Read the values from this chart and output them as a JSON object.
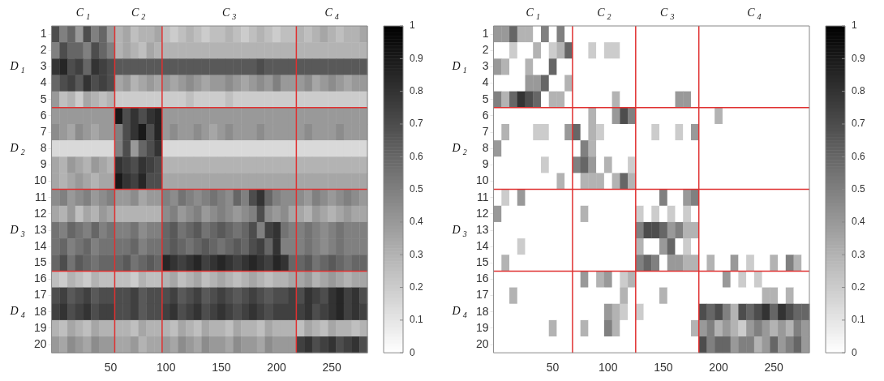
{
  "chart_data": [
    {
      "type": "heatmap",
      "categories": [
        null,
        null,
        null,
        null,
        null,
        null,
        null,
        "50",
        null,
        null,
        null,
        null,
        null,
        null,
        "100",
        null,
        null,
        null,
        null,
        null,
        null,
        "150",
        null,
        null,
        null,
        null,
        null,
        null,
        "200",
        null,
        null,
        null,
        null,
        null,
        null,
        "250",
        null,
        null,
        null,
        null
      ],
      "ylim": [
        20.5,
        0.5
      ],
      "yticks": [
        1,
        2,
        3,
        4,
        5,
        6,
        7,
        8,
        9,
        10,
        11,
        12,
        13,
        14,
        15,
        16,
        17,
        18,
        19,
        20
      ],
      "clim": [
        0,
        1
      ],
      "cticks": [
        0,
        0.1,
        0.2,
        0.3,
        0.4,
        0.5,
        0.6,
        0.7,
        0.8,
        0.9,
        1
      ],
      "cells": [
        [
          0.7,
          0.5,
          0.6,
          0.4,
          0.7,
          0.5,
          0.6,
          0.4,
          0.3,
          0.35,
          0.25,
          0.3,
          0.3,
          0.35,
          0.25,
          0.2,
          0.25,
          0.3,
          0.25,
          0.2,
          0.25,
          0.25,
          0.3,
          0.25,
          0.2,
          0.25,
          0.3,
          0.25,
          0.2,
          0.25,
          0.25,
          0.3,
          0.25,
          0.3,
          0.35,
          0.3,
          0.25,
          0.3,
          0.3,
          0.35
        ],
        [
          0.5,
          0.7,
          0.6,
          0.6,
          0.5,
          0.7,
          0.6,
          0.5,
          0.3,
          0.35,
          0.3,
          0.25,
          0.35,
          0.3,
          0.3,
          0.3,
          0.3,
          0.3,
          0.3,
          0.3,
          0.3,
          0.3,
          0.3,
          0.3,
          0.3,
          0.3,
          0.3,
          0.3,
          0.3,
          0.3,
          0.3,
          0.3,
          0.3,
          0.3,
          0.3,
          0.3,
          0.3,
          0.3,
          0.3,
          0.3
        ],
        [
          0.8,
          0.85,
          0.7,
          0.75,
          0.6,
          0.8,
          0.75,
          0.7,
          0.65,
          0.65,
          0.65,
          0.65,
          0.65,
          0.65,
          0.65,
          0.65,
          0.65,
          0.65,
          0.65,
          0.65,
          0.65,
          0.65,
          0.65,
          0.65,
          0.65,
          0.65,
          0.7,
          0.65,
          0.65,
          0.65,
          0.65,
          0.65,
          0.65,
          0.65,
          0.65,
          0.65,
          0.65,
          0.65,
          0.65,
          0.65
        ],
        [
          0.6,
          0.7,
          0.75,
          0.65,
          0.8,
          0.7,
          0.75,
          0.7,
          0.35,
          0.4,
          0.3,
          0.35,
          0.4,
          0.35,
          0.4,
          0.35,
          0.4,
          0.45,
          0.4,
          0.35,
          0.4,
          0.4,
          0.45,
          0.4,
          0.35,
          0.4,
          0.45,
          0.4,
          0.5,
          0.4,
          0.4,
          0.4,
          0.45,
          0.35,
          0.4,
          0.45,
          0.4,
          0.35,
          0.4,
          0.4
        ],
        [
          0.4,
          0.25,
          0.3,
          0.2,
          0.35,
          0.3,
          0.25,
          0.3,
          0.2,
          0.2,
          0.2,
          0.2,
          0.2,
          0.2,
          0.2,
          0.2,
          0.2,
          0.25,
          0.2,
          0.2,
          0.2,
          0.2,
          0.25,
          0.2,
          0.2,
          0.2,
          0.2,
          0.2,
          0.2,
          0.2,
          0.2,
          0.2,
          0.2,
          0.2,
          0.2,
          0.2,
          0.2,
          0.2,
          0.2,
          0.2
        ],
        [
          0.4,
          0.4,
          0.4,
          0.4,
          0.4,
          0.4,
          0.4,
          0.4,
          0.9,
          0.7,
          0.8,
          0.7,
          0.8,
          0.85,
          0.4,
          0.4,
          0.4,
          0.4,
          0.4,
          0.4,
          0.4,
          0.4,
          0.4,
          0.4,
          0.4,
          0.4,
          0.4,
          0.4,
          0.4,
          0.4,
          0.4,
          0.4,
          0.4,
          0.4,
          0.4,
          0.4,
          0.4,
          0.4,
          0.4,
          0.4
        ],
        [
          0.45,
          0.4,
          0.35,
          0.45,
          0.4,
          0.35,
          0.4,
          0.4,
          0.5,
          0.7,
          0.8,
          0.9,
          0.7,
          0.85,
          0.4,
          0.45,
          0.4,
          0.4,
          0.45,
          0.4,
          0.35,
          0.4,
          0.45,
          0.4,
          0.4,
          0.4,
          0.45,
          0.4,
          0.4,
          0.4,
          0.4,
          0.4,
          0.45,
          0.4,
          0.4,
          0.4,
          0.45,
          0.4,
          0.4,
          0.4
        ],
        [
          0.15,
          0.15,
          0.15,
          0.15,
          0.15,
          0.15,
          0.15,
          0.15,
          0.5,
          0.7,
          0.4,
          0.6,
          0.7,
          0.8,
          0.15,
          0.15,
          0.15,
          0.15,
          0.15,
          0.15,
          0.15,
          0.15,
          0.15,
          0.15,
          0.15,
          0.15,
          0.15,
          0.15,
          0.15,
          0.15,
          0.15,
          0.15,
          0.15,
          0.15,
          0.15,
          0.15,
          0.15,
          0.15,
          0.15,
          0.15
        ],
        [
          0.35,
          0.3,
          0.4,
          0.35,
          0.3,
          0.4,
          0.35,
          0.3,
          0.8,
          0.75,
          0.7,
          0.8,
          0.75,
          0.7,
          0.3,
          0.3,
          0.3,
          0.3,
          0.3,
          0.3,
          0.3,
          0.3,
          0.3,
          0.3,
          0.3,
          0.3,
          0.3,
          0.3,
          0.3,
          0.3,
          0.3,
          0.3,
          0.3,
          0.3,
          0.3,
          0.3,
          0.3,
          0.3,
          0.3,
          0.3
        ],
        [
          0.35,
          0.3,
          0.35,
          0.4,
          0.35,
          0.3,
          0.35,
          0.35,
          0.9,
          0.8,
          0.75,
          0.85,
          0.7,
          0.7,
          0.35,
          0.35,
          0.35,
          0.35,
          0.35,
          0.35,
          0.35,
          0.35,
          0.35,
          0.35,
          0.35,
          0.35,
          0.35,
          0.35,
          0.35,
          0.35,
          0.35,
          0.35,
          0.35,
          0.35,
          0.35,
          0.35,
          0.35,
          0.35,
          0.35,
          0.35
        ],
        [
          0.45,
          0.5,
          0.4,
          0.45,
          0.5,
          0.4,
          0.45,
          0.5,
          0.4,
          0.4,
          0.45,
          0.35,
          0.4,
          0.4,
          0.5,
          0.45,
          0.55,
          0.5,
          0.45,
          0.5,
          0.55,
          0.5,
          0.45,
          0.6,
          0.5,
          0.7,
          0.8,
          0.6,
          0.5,
          0.45,
          0.45,
          0.45,
          0.4,
          0.5,
          0.45,
          0.4,
          0.45,
          0.5,
          0.45,
          0.4
        ],
        [
          0.35,
          0.3,
          0.4,
          0.25,
          0.35,
          0.3,
          0.4,
          0.35,
          0.3,
          0.3,
          0.3,
          0.3,
          0.3,
          0.3,
          0.45,
          0.5,
          0.4,
          0.45,
          0.5,
          0.4,
          0.45,
          0.5,
          0.45,
          0.4,
          0.45,
          0.5,
          0.7,
          0.45,
          0.4,
          0.45,
          0.35,
          0.35,
          0.3,
          0.4,
          0.35,
          0.3,
          0.35,
          0.4,
          0.35,
          0.35
        ],
        [
          0.55,
          0.5,
          0.6,
          0.55,
          0.5,
          0.6,
          0.5,
          0.55,
          0.5,
          0.5,
          0.55,
          0.45,
          0.5,
          0.5,
          0.6,
          0.65,
          0.55,
          0.6,
          0.65,
          0.55,
          0.6,
          0.65,
          0.6,
          0.55,
          0.6,
          0.7,
          0.5,
          0.75,
          0.8,
          0.55,
          0.5,
          0.5,
          0.55,
          0.5,
          0.45,
          0.5,
          0.55,
          0.5,
          0.5,
          0.5
        ],
        [
          0.55,
          0.6,
          0.5,
          0.55,
          0.6,
          0.5,
          0.55,
          0.55,
          0.55,
          0.55,
          0.6,
          0.5,
          0.55,
          0.55,
          0.6,
          0.65,
          0.6,
          0.55,
          0.6,
          0.65,
          0.6,
          0.55,
          0.6,
          0.65,
          0.6,
          0.7,
          0.75,
          0.6,
          0.8,
          0.5,
          0.5,
          0.5,
          0.55,
          0.5,
          0.45,
          0.5,
          0.55,
          0.5,
          0.5,
          0.5
        ],
        [
          0.6,
          0.7,
          0.55,
          0.65,
          0.6,
          0.55,
          0.6,
          0.6,
          0.6,
          0.65,
          0.55,
          0.6,
          0.65,
          0.6,
          0.85,
          0.8,
          0.75,
          0.8,
          0.85,
          0.75,
          0.8,
          0.85,
          0.8,
          0.75,
          0.8,
          0.85,
          0.8,
          0.75,
          0.85,
          0.8,
          0.6,
          0.6,
          0.65,
          0.55,
          0.6,
          0.65,
          0.6,
          0.55,
          0.6,
          0.6
        ],
        [
          0.25,
          0.2,
          0.3,
          0.25,
          0.2,
          0.3,
          0.25,
          0.25,
          0.25,
          0.25,
          0.2,
          0.3,
          0.25,
          0.25,
          0.3,
          0.35,
          0.25,
          0.3,
          0.35,
          0.25,
          0.3,
          0.35,
          0.3,
          0.25,
          0.3,
          0.35,
          0.3,
          0.25,
          0.3,
          0.3,
          0.35,
          0.35,
          0.4,
          0.3,
          0.35,
          0.4,
          0.35,
          0.3,
          0.35,
          0.35
        ],
        [
          0.7,
          0.75,
          0.65,
          0.7,
          0.75,
          0.65,
          0.7,
          0.7,
          0.7,
          0.7,
          0.75,
          0.65,
          0.7,
          0.7,
          0.7,
          0.75,
          0.65,
          0.7,
          0.75,
          0.65,
          0.7,
          0.75,
          0.7,
          0.65,
          0.7,
          0.75,
          0.7,
          0.65,
          0.7,
          0.7,
          0.75,
          0.7,
          0.8,
          0.75,
          0.7,
          0.8,
          0.85,
          0.75,
          0.8,
          0.7
        ],
        [
          0.75,
          0.8,
          0.7,
          0.75,
          0.8,
          0.7,
          0.75,
          0.75,
          0.7,
          0.7,
          0.75,
          0.65,
          0.7,
          0.7,
          0.75,
          0.8,
          0.7,
          0.75,
          0.8,
          0.7,
          0.75,
          0.8,
          0.75,
          0.7,
          0.75,
          0.8,
          0.75,
          0.7,
          0.75,
          0.75,
          0.75,
          0.75,
          0.8,
          0.7,
          0.75,
          0.8,
          0.85,
          0.75,
          0.8,
          0.75
        ],
        [
          0.3,
          0.25,
          0.35,
          0.3,
          0.25,
          0.35,
          0.3,
          0.3,
          0.3,
          0.3,
          0.25,
          0.35,
          0.3,
          0.3,
          0.3,
          0.25,
          0.35,
          0.3,
          0.25,
          0.35,
          0.3,
          0.3,
          0.25,
          0.35,
          0.3,
          0.3,
          0.25,
          0.35,
          0.3,
          0.3,
          0.3,
          0.25,
          0.35,
          0.3,
          0.25,
          0.35,
          0.3,
          0.3,
          0.25,
          0.3
        ],
        [
          0.4,
          0.35,
          0.45,
          0.4,
          0.35,
          0.45,
          0.4,
          0.4,
          0.35,
          0.35,
          0.4,
          0.3,
          0.35,
          0.35,
          0.4,
          0.35,
          0.45,
          0.4,
          0.35,
          0.45,
          0.4,
          0.4,
          0.35,
          0.45,
          0.4,
          0.4,
          0.35,
          0.45,
          0.4,
          0.4,
          0.4,
          0.75,
          0.8,
          0.7,
          0.75,
          0.8,
          0.7,
          0.75,
          0.8,
          0.7
        ]
      ],
      "ref_lines": [
        {
          "axis": "y",
          "value": 5.5,
          "color": "#e03030"
        },
        {
          "axis": "y",
          "value": 10.5,
          "color": "#e03030"
        },
        {
          "axis": "y",
          "value": 15.5,
          "color": "#e03030"
        }
      ],
      "annotations": [
        "C$_{1}$",
        "C$_{2}$",
        "C$_{3}$",
        "C$_{4}$",
        "D$_{1}$",
        "D$_{2}$",
        "D$_{3}$",
        "D$_{4}$"
      ]
    },
    {
      "type": "heatmap",
      "categories": [
        null,
        null,
        null,
        null,
        null,
        null,
        null,
        "50",
        null,
        null,
        null,
        null,
        null,
        null,
        "100",
        null,
        null,
        null,
        null,
        null,
        null,
        "150",
        null,
        null,
        null,
        null,
        null,
        null,
        "200",
        null,
        null,
        null,
        null,
        null,
        null,
        "250",
        null,
        null,
        null,
        null
      ],
      "ylim": [
        20.5,
        0.5
      ],
      "yticks": [
        1,
        2,
        3,
        4,
        5,
        6,
        7,
        8,
        9,
        10,
        11,
        12,
        13,
        14,
        15,
        16,
        17,
        18,
        19,
        20
      ],
      "clim": [
        0,
        1
      ],
      "cticks": [
        0,
        0.1,
        0.2,
        0.3,
        0.4,
        0.5,
        0.6,
        0.7,
        0.8,
        0.9,
        1
      ],
      "cells": [
        [
          0.4,
          0.4,
          0.6,
          0.3,
          0.3,
          0,
          0.5,
          0,
          0.5,
          0,
          0,
          0,
          0,
          0,
          0,
          0,
          0,
          0,
          0,
          0,
          0,
          0,
          0,
          0,
          0,
          0,
          0,
          0,
          0,
          0,
          0,
          0,
          0,
          0,
          0,
          0,
          0,
          0,
          0,
          0
        ],
        [
          0,
          0,
          0.2,
          0,
          0,
          0.3,
          0,
          0.2,
          0.3,
          0.6,
          0,
          0,
          0.2,
          0,
          0.2,
          0.2,
          0,
          0,
          0,
          0,
          0,
          0,
          0,
          0,
          0,
          0,
          0,
          0,
          0,
          0,
          0,
          0,
          0,
          0,
          0,
          0,
          0,
          0,
          0,
          0
        ],
        [
          0.4,
          0.3,
          0,
          0,
          0.3,
          0,
          0,
          0.6,
          0,
          0,
          0,
          0,
          0,
          0,
          0,
          0,
          0,
          0,
          0,
          0,
          0,
          0,
          0,
          0,
          0,
          0,
          0,
          0,
          0,
          0,
          0,
          0,
          0,
          0,
          0,
          0,
          0,
          0,
          0,
          0
        ],
        [
          0,
          0,
          0,
          0,
          0.4,
          0.4,
          0.6,
          0,
          0,
          0.3,
          0,
          0,
          0,
          0,
          0,
          0,
          0,
          0,
          0,
          0,
          0,
          0,
          0,
          0,
          0,
          0,
          0,
          0,
          0,
          0,
          0,
          0,
          0,
          0,
          0,
          0,
          0,
          0,
          0,
          0
        ],
        [
          0.5,
          0.3,
          0.6,
          0.8,
          0.7,
          0.6,
          0,
          0.3,
          0.3,
          0,
          0,
          0,
          0,
          0,
          0,
          0.3,
          0,
          0,
          0,
          0,
          0,
          0,
          0,
          0.4,
          0.4,
          0,
          0,
          0,
          0,
          0,
          0,
          0,
          0,
          0,
          0,
          0,
          0,
          0,
          0,
          0
        ],
        [
          0,
          0,
          0,
          0,
          0,
          0,
          0,
          0,
          0,
          0,
          0,
          0,
          0.3,
          0,
          0,
          0.4,
          0.7,
          0.5,
          0,
          0,
          0,
          0,
          0,
          0,
          0,
          0,
          0,
          0,
          0.3,
          0,
          0,
          0,
          0,
          0,
          0,
          0,
          0,
          0,
          0,
          0
        ],
        [
          0,
          0.3,
          0,
          0,
          0,
          0.2,
          0.2,
          0,
          0,
          0.4,
          0.6,
          0,
          0.3,
          0.2,
          0,
          0,
          0,
          0,
          0,
          0,
          0.2,
          0,
          0,
          0.2,
          0,
          0.4,
          0,
          0,
          0,
          0,
          0,
          0,
          0,
          0,
          0,
          0,
          0,
          0,
          0,
          0
        ],
        [
          0.4,
          0,
          0,
          0,
          0,
          0,
          0,
          0,
          0,
          0,
          0,
          0.5,
          0.3,
          0,
          0,
          0,
          0,
          0,
          0,
          0,
          0,
          0,
          0,
          0,
          0,
          0,
          0,
          0,
          0,
          0,
          0,
          0,
          0,
          0,
          0,
          0,
          0,
          0,
          0,
          0
        ],
        [
          0,
          0,
          0,
          0,
          0,
          0,
          0.2,
          0,
          0,
          0,
          0.5,
          0.6,
          0.4,
          0,
          0.3,
          0,
          0,
          0.2,
          0,
          0,
          0,
          0,
          0,
          0,
          0,
          0,
          0,
          0,
          0,
          0,
          0,
          0,
          0,
          0,
          0,
          0,
          0,
          0,
          0,
          0
        ],
        [
          0,
          0,
          0,
          0,
          0,
          0,
          0,
          0,
          0.3,
          0,
          0,
          0.3,
          0.3,
          0.3,
          0,
          0.3,
          0.6,
          0.3,
          0,
          0,
          0,
          0,
          0,
          0,
          0,
          0,
          0,
          0,
          0,
          0,
          0,
          0,
          0,
          0,
          0,
          0,
          0,
          0,
          0,
          0
        ],
        [
          0,
          0.2,
          0,
          0.4,
          0,
          0,
          0,
          0,
          0,
          0,
          0,
          0,
          0,
          0,
          0,
          0,
          0,
          0,
          0,
          0,
          0,
          0.5,
          0,
          0,
          0.4,
          0.5,
          0,
          0,
          0,
          0,
          0,
          0,
          0,
          0,
          0,
          0,
          0,
          0,
          0,
          0
        ],
        [
          0.4,
          0,
          0,
          0,
          0,
          0,
          0,
          0,
          0,
          0,
          0,
          0.3,
          0,
          0,
          0,
          0,
          0,
          0,
          0.2,
          0,
          0.2,
          0,
          0.2,
          0,
          0.2,
          0,
          0,
          0,
          0,
          0,
          0,
          0,
          0,
          0,
          0,
          0,
          0,
          0,
          0,
          0
        ],
        [
          0,
          0,
          0,
          0,
          0,
          0,
          0,
          0,
          0,
          0,
          0,
          0,
          0,
          0,
          0,
          0,
          0,
          0,
          0.5,
          0.7,
          0.7,
          0.6,
          0.4,
          0.5,
          0.3,
          0.3,
          0,
          0,
          0,
          0,
          0,
          0,
          0,
          0,
          0,
          0,
          0,
          0,
          0,
          0
        ],
        [
          0,
          0,
          0,
          0.2,
          0,
          0,
          0,
          0,
          0,
          0,
          0,
          0,
          0,
          0,
          0,
          0,
          0,
          0,
          0.3,
          0,
          0,
          0.4,
          0.6,
          0,
          0.2,
          0,
          0,
          0,
          0,
          0,
          0,
          0,
          0,
          0,
          0,
          0,
          0,
          0,
          0,
          0
        ],
        [
          0,
          0.3,
          0,
          0,
          0,
          0,
          0,
          0,
          0,
          0,
          0,
          0,
          0,
          0,
          0,
          0,
          0,
          0,
          0.5,
          0.6,
          0.5,
          0,
          0.4,
          0.4,
          0.3,
          0.3,
          0,
          0.3,
          0,
          0,
          0.4,
          0,
          0.2,
          0,
          0,
          0.3,
          0,
          0.5,
          0.3,
          0
        ],
        [
          0,
          0,
          0,
          0,
          0,
          0,
          0,
          0,
          0,
          0,
          0,
          0.4,
          0,
          0.3,
          0.4,
          0,
          0.2,
          0.3,
          0,
          0,
          0,
          0,
          0,
          0,
          0,
          0,
          0,
          0,
          0,
          0.4,
          0,
          0.2,
          0,
          0.2,
          0,
          0,
          0,
          0,
          0,
          0
        ],
        [
          0,
          0,
          0.3,
          0,
          0,
          0,
          0,
          0,
          0,
          0,
          0,
          0,
          0,
          0,
          0,
          0,
          0.3,
          0,
          0,
          0,
          0,
          0.3,
          0,
          0,
          0,
          0,
          0,
          0,
          0,
          0,
          0,
          0,
          0,
          0,
          0.3,
          0.3,
          0,
          0.3,
          0,
          0
        ],
        [
          0,
          0,
          0,
          0,
          0,
          0,
          0,
          0,
          0,
          0,
          0,
          0,
          0,
          0,
          0.4,
          0.3,
          0.2,
          0,
          0.2,
          0,
          0,
          0,
          0,
          0,
          0,
          0,
          0.7,
          0.6,
          0.7,
          0.5,
          0.3,
          0.7,
          0.6,
          0.7,
          0.8,
          0.6,
          0.8,
          0.7,
          0.6,
          0.6
        ],
        [
          0,
          0,
          0,
          0,
          0,
          0,
          0,
          0.3,
          0,
          0,
          0,
          0.3,
          0,
          0,
          0.5,
          0.3,
          0,
          0,
          0,
          0,
          0,
          0,
          0,
          0,
          0,
          0.3,
          0.4,
          0.5,
          0.3,
          0.4,
          0.3,
          0.2,
          0.4,
          0.5,
          0.4,
          0.3,
          0.4,
          0.3,
          0.5,
          0.4
        ],
        [
          0,
          0,
          0,
          0,
          0,
          0,
          0,
          0,
          0,
          0,
          0,
          0,
          0,
          0,
          0,
          0,
          0,
          0,
          0,
          0,
          0,
          0,
          0,
          0,
          0,
          0,
          0.7,
          0.5,
          0.6,
          0.6,
          0.4,
          0.5,
          0.5,
          0.3,
          0.4,
          0.6,
          0.4,
          0.5,
          0.6,
          0.4
        ]
      ],
      "ref_lines": [
        {
          "axis": "y",
          "value": 5.5,
          "color": "#e03030"
        },
        {
          "axis": "y",
          "value": 10.5,
          "color": "#e03030"
        },
        {
          "axis": "y",
          "value": 15.5,
          "color": "#e03030"
        }
      ],
      "annotations": [
        "C$_{1}$",
        "C$_{2}$",
        "C$_{3}$",
        "C$_{4}$",
        "D$_{1}$",
        "D$_{2}$",
        "D$_{3}$",
        "D$_{4}$"
      ]
    }
  ]
}
